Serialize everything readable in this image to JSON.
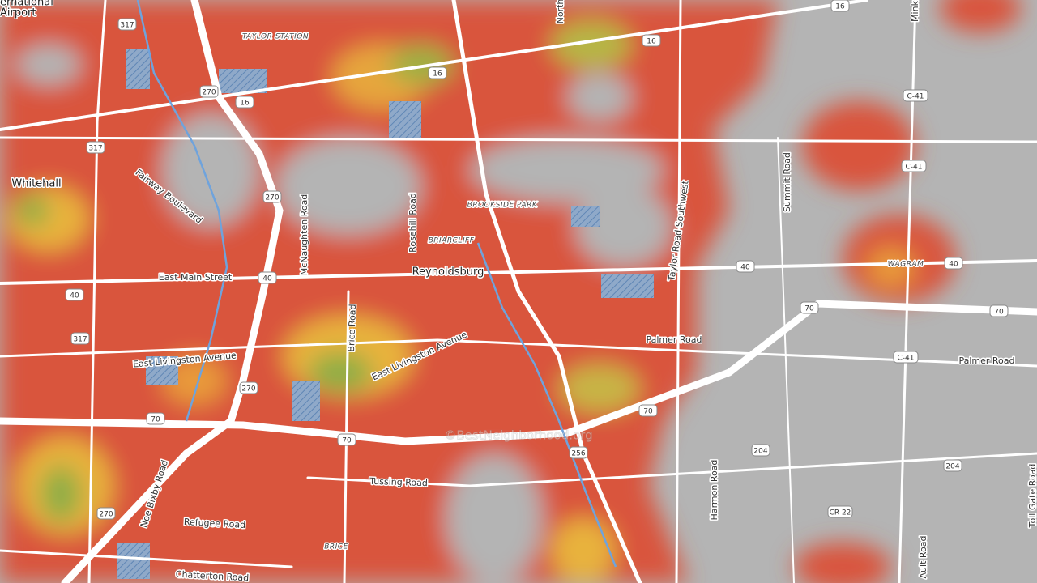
{
  "map": {
    "airport": [
      "ernational",
      "Airport"
    ],
    "places": [
      "Whitehall",
      "Reynoldsburg"
    ],
    "areas": [
      "TAYLOR STATION",
      "BROOKSIDE PARK",
      "BRIARCLIFF",
      "WAGRAM",
      "BRICE"
    ],
    "streets": [
      "Fairway Boulevard",
      "East Main Street",
      "McNaughten Road",
      "Rosehill Road",
      "Brice Road",
      "East Livingston Avenue",
      "East Livingston Avenue",
      "Taylor Road Southwest",
      "Summit Road",
      "Palmer Road",
      "Palmer Road",
      "Tussing Road",
      "Refugee Road",
      "Chatterton Road",
      "Noe Bixby Road",
      "Harmon Road",
      "Ault Road",
      "Toll Gate Road",
      "Mink",
      "North"
    ],
    "shields": [
      "317",
      "317",
      "317",
      "16",
      "16",
      "16",
      "16",
      "270",
      "270",
      "270",
      "270",
      "40",
      "40",
      "40",
      "40",
      "70",
      "70",
      "70",
      "70",
      "70",
      "256",
      "204",
      "204",
      "C-41",
      "C-41",
      "C-41",
      "CR 22"
    ],
    "watermark": "©BestNeighborhood.org"
  }
}
